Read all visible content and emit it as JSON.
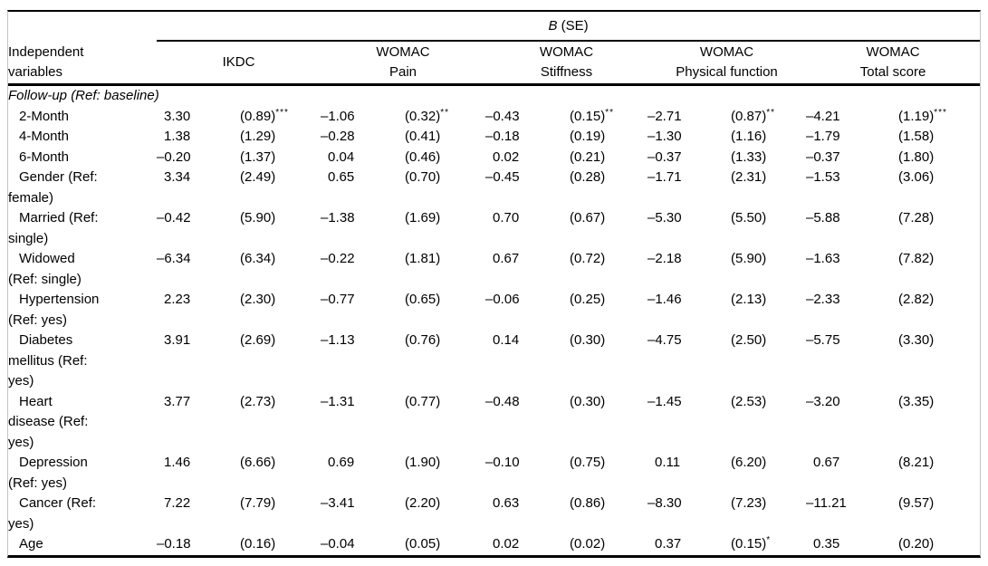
{
  "figure": {
    "header": {
      "b_label": "B",
      "se_label": " (SE)",
      "row_header": "Independent variables"
    },
    "groups": [
      {
        "line1": "IKDC",
        "line2": ""
      },
      {
        "line1": "WOMAC",
        "line2": "Pain"
      },
      {
        "line1": "WOMAC",
        "line2": "Stiffness"
      },
      {
        "line1": "WOMAC",
        "line2": "Physical function"
      },
      {
        "line1": "WOMAC",
        "line2": "Total score"
      }
    ],
    "section_label": "Follow-up (Ref: baseline)",
    "rows": [
      {
        "label": "2-Month",
        "label_lines": [
          "2-Month"
        ],
        "values": [
          "3.30",
          "(0.89)",
          "–1.06",
          "(0.32)",
          "–0.43",
          "(0.15)",
          "–2.71",
          "(0.87)",
          "–4.21",
          "(1.19)"
        ],
        "sups": [
          "",
          "***",
          "",
          "**",
          "",
          "**",
          "",
          "**",
          "",
          "***"
        ]
      },
      {
        "label": "4-Month",
        "label_lines": [
          "4-Month"
        ],
        "values": [
          "1.38",
          "(1.29)",
          "–0.28",
          "(0.41)",
          "–0.18",
          "(0.19)",
          "–1.30",
          "(1.16)",
          "–1.79",
          "(1.58)"
        ],
        "sups": [
          "",
          "",
          "",
          "",
          "",
          "",
          "",
          "",
          "",
          ""
        ]
      },
      {
        "label": "6-Month",
        "label_lines": [
          "6-Month"
        ],
        "values": [
          "–0.20",
          "(1.37)",
          "0.04",
          "(0.46)",
          "0.02",
          "(0.21)",
          "–0.37",
          "(1.33)",
          "–0.37",
          "(1.80)"
        ],
        "sups": [
          "",
          "",
          "",
          "",
          "",
          "",
          "",
          "",
          "",
          ""
        ]
      },
      {
        "label": "Gender (Ref: female)",
        "label_lines": [
          "Gender (Ref:",
          "female)"
        ],
        "values": [
          "3.34",
          "(2.49)",
          "0.65",
          "(0.70)",
          "–0.45",
          "(0.28)",
          "–1.71",
          "(2.31)",
          "–1.53",
          "(3.06)"
        ],
        "sups": [
          "",
          "",
          "",
          "",
          "",
          "",
          "",
          "",
          "",
          ""
        ]
      },
      {
        "label": "Married (Ref: single)",
        "label_lines": [
          "Married (Ref:",
          "single)"
        ],
        "values": [
          "–0.42",
          "(5.90)",
          "–1.38",
          "(1.69)",
          "0.70",
          "(0.67)",
          "–5.30",
          "(5.50)",
          "–5.88",
          "(7.28)"
        ],
        "sups": [
          "",
          "",
          "",
          "",
          "",
          "",
          "",
          "",
          "",
          ""
        ]
      },
      {
        "label": "Widowed (Ref: single)",
        "label_lines": [
          "Widowed",
          "(Ref: single)"
        ],
        "values": [
          "–6.34",
          "(6.34)",
          "–0.22",
          "(1.81)",
          "0.67",
          "(0.72)",
          "–2.18",
          "(5.90)",
          "–1.63",
          "(7.82)"
        ],
        "sups": [
          "",
          "",
          "",
          "",
          "",
          "",
          "",
          "",
          "",
          ""
        ]
      },
      {
        "label": "Hypertension (Ref: yes)",
        "label_lines": [
          "Hypertension",
          "(Ref: yes)"
        ],
        "values": [
          "2.23",
          "(2.30)",
          "–0.77",
          "(0.65)",
          "–0.06",
          "(0.25)",
          "–1.46",
          "(2.13)",
          "–2.33",
          "(2.82)"
        ],
        "sups": [
          "",
          "",
          "",
          "",
          "",
          "",
          "",
          "",
          "",
          ""
        ]
      },
      {
        "label": "Diabetes mellitus (Ref: yes)",
        "label_lines": [
          "Diabetes",
          "mellitus (Ref:",
          "yes)"
        ],
        "values": [
          "3.91",
          "(2.69)",
          "–1.13",
          "(0.76)",
          "0.14",
          "(0.30)",
          "–4.75",
          "(2.50)",
          "–5.75",
          "(3.30)"
        ],
        "sups": [
          "",
          "",
          "",
          "",
          "",
          "",
          "",
          "",
          "",
          ""
        ]
      },
      {
        "label": "Heart disease (Ref: yes)",
        "label_lines": [
          "Heart",
          "disease (Ref:",
          "yes)"
        ],
        "values": [
          "3.77",
          "(2.73)",
          "–1.31",
          "(0.77)",
          "–0.48",
          "(0.30)",
          "–1.45",
          "(2.53)",
          "–3.20",
          "(3.35)"
        ],
        "sups": [
          "",
          "",
          "",
          "",
          "",
          "",
          "",
          "",
          "",
          ""
        ]
      },
      {
        "label": "Depression (Ref: yes)",
        "label_lines": [
          "Depression",
          "(Ref: yes)"
        ],
        "values": [
          "1.46",
          "(6.66)",
          "0.69",
          "(1.90)",
          "–0.10",
          "(0.75)",
          "0.11",
          "(6.20)",
          "0.67",
          "(8.21)"
        ],
        "sups": [
          "",
          "",
          "",
          "",
          "",
          "",
          "",
          "",
          "",
          ""
        ]
      },
      {
        "label": "Cancer (Ref: yes)",
        "label_lines": [
          "Cancer (Ref:",
          "yes)"
        ],
        "values": [
          "7.22",
          "(7.79)",
          "–3.41",
          "(2.20)",
          "0.63",
          "(0.86)",
          "–8.30",
          "(7.23)",
          "–11.21",
          "(9.57)"
        ],
        "sups": [
          "",
          "",
          "",
          "",
          "",
          "",
          "",
          "",
          "",
          ""
        ]
      },
      {
        "label": "Age",
        "label_lines": [
          "Age"
        ],
        "values": [
          "–0.18",
          "(0.16)",
          "–0.04",
          "(0.05)",
          "0.02",
          "(0.02)",
          "0.37",
          "(0.15)",
          "0.35",
          "(0.20)"
        ],
        "sups": [
          "",
          "",
          "",
          "",
          "",
          "",
          "",
          "*",
          "",
          ""
        ]
      }
    ]
  }
}
